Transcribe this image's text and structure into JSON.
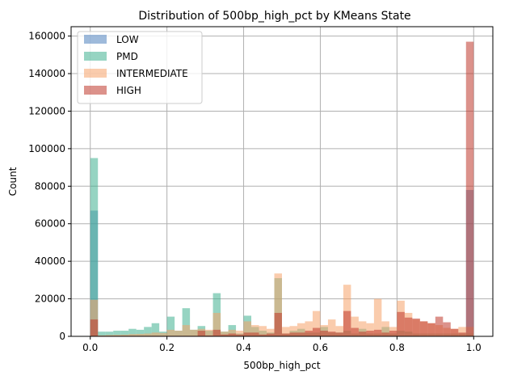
{
  "chart_data": {
    "type": "bar",
    "title": "Distribution of 500bp_high_pct by KMeans State",
    "xlabel": "500bp_high_pct",
    "ylabel": "Count",
    "xlim": [
      -0.05,
      1.05
    ],
    "ylim": [
      0,
      165000
    ],
    "xticks": [
      0.0,
      0.2,
      0.4,
      0.6,
      0.8,
      1.0
    ],
    "xtick_labels": [
      "0.0",
      "0.2",
      "0.4",
      "0.6",
      "0.8",
      "1.0"
    ],
    "yticks": [
      0,
      20000,
      40000,
      60000,
      80000,
      100000,
      120000,
      140000,
      160000
    ],
    "ytick_labels": [
      "0",
      "20000",
      "40000",
      "60000",
      "80000",
      "100000",
      "120000",
      "140000",
      "160000"
    ],
    "grid": true,
    "legend_position": "top-left",
    "bins": {
      "start": 0.0,
      "end": 1.0,
      "count": 50
    },
    "series": [
      {
        "name": "LOW",
        "color": "#4f81bd",
        "values": [
          67000,
          0,
          0,
          0,
          0,
          0,
          0,
          0,
          0,
          0,
          0,
          0,
          0,
          0,
          0,
          0,
          0,
          0,
          0,
          0,
          0,
          0,
          0,
          0,
          0,
          0,
          0,
          0,
          0,
          0,
          0,
          0,
          0,
          0,
          0,
          0,
          0,
          0,
          0,
          0,
          0,
          0,
          0,
          0,
          0,
          0,
          0,
          0,
          0,
          78000
        ]
      },
      {
        "name": "PMD",
        "color": "#3fb08f",
        "values": [
          95000,
          2500,
          2500,
          3000,
          3000,
          4000,
          3500,
          5000,
          7000,
          2500,
          10500,
          3000,
          15000,
          3500,
          5500,
          3000,
          23000,
          2500,
          6000,
          1500,
          11000,
          5000,
          3000,
          2000,
          31000,
          1500,
          3000,
          4000,
          2000,
          2000,
          5000,
          2000,
          2000,
          3000,
          1500,
          4000,
          1500,
          1500,
          5000,
          1500,
          3000,
          2500,
          1500,
          1500,
          1500,
          1500,
          1500,
          1500,
          1500,
          1500
        ]
      },
      {
        "name": "INTERMEDIATE",
        "color": "#f5a36a",
        "values": [
          19500,
          500,
          700,
          800,
          900,
          1200,
          1300,
          1500,
          2000,
          1800,
          3500,
          3000,
          6000,
          3500,
          4000,
          3500,
          12500,
          2500,
          3500,
          3000,
          8000,
          6000,
          5500,
          4000,
          33500,
          5000,
          5500,
          7000,
          8000,
          13500,
          6000,
          9000,
          5500,
          27500,
          10500,
          8000,
          7000,
          20000,
          8000,
          5000,
          19000,
          12500,
          9000,
          8000,
          7000,
          6000,
          4500,
          4000,
          5000,
          5000
        ]
      },
      {
        "name": "HIGH",
        "color": "#c0392b",
        "values": [
          9000,
          300,
          300,
          300,
          300,
          300,
          300,
          300,
          300,
          300,
          300,
          300,
          300,
          300,
          3000,
          500,
          3500,
          1000,
          1500,
          1000,
          2000,
          2000,
          1000,
          1500,
          12500,
          1500,
          2000,
          2000,
          3000,
          4500,
          3000,
          2500,
          2000,
          13500,
          4500,
          2500,
          3000,
          3500,
          2000,
          3000,
          13000,
          10000,
          9500,
          8000,
          7000,
          10500,
          7500,
          4000,
          2000,
          157000
        ]
      }
    ]
  }
}
